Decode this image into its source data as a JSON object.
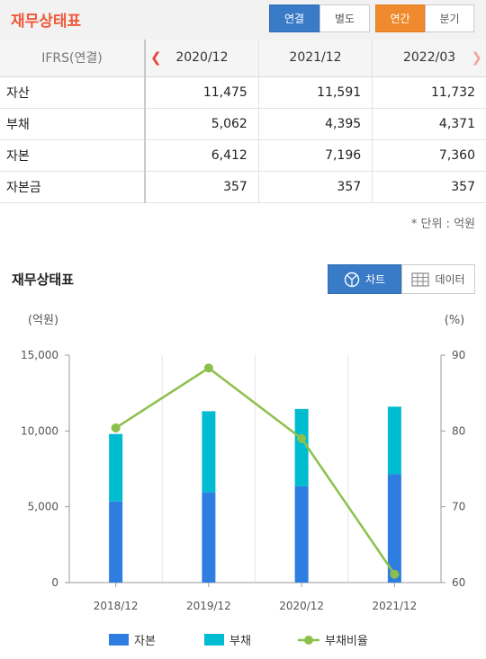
{
  "header": {
    "title": "재무상태표",
    "consolidation_tabs": [
      "연결",
      "별도"
    ],
    "period_tabs": [
      "연간",
      "분기"
    ],
    "colors": {
      "title": "#f0583a",
      "active_blue": "#3a7bc8",
      "active_orange": "#ef8a2e"
    }
  },
  "table": {
    "corner_label": "IFRS(연결)",
    "columns": [
      "2020/12",
      "2021/12",
      "2022/03"
    ],
    "rows": [
      {
        "label": "자산",
        "values": [
          "11,475",
          "11,591",
          "11,732"
        ]
      },
      {
        "label": "부채",
        "values": [
          "5,062",
          "4,395",
          "4,371"
        ]
      },
      {
        "label": "자본",
        "values": [
          "6,412",
          "7,196",
          "7,360"
        ]
      },
      {
        "label": "자본금",
        "values": [
          "357",
          "357",
          "357"
        ]
      }
    ],
    "unit_note": "* 단위 : 억원"
  },
  "chart_section": {
    "title": "재무상태표",
    "chart_button": "차트",
    "data_button": "데이터",
    "chart_icon": "pie-chart-icon",
    "data_icon": "table-grid-icon"
  },
  "chart_data": {
    "type": "bar",
    "stacked": true,
    "categories": [
      "2018/12",
      "2019/12",
      "2020/12",
      "2021/12"
    ],
    "y_left_label": "(억원)",
    "y_right_label": "(%)",
    "y_left_range": [
      0,
      15000
    ],
    "y_left_ticks": [
      "0",
      "5,000",
      "10,000",
      "15,000"
    ],
    "y_right_range": [
      60,
      90
    ],
    "y_right_ticks": [
      "60",
      "70",
      "80",
      "90"
    ],
    "grid": true,
    "legend_position": "bottom",
    "series": [
      {
        "name": "자본",
        "kind": "bar",
        "color": "#2e7de0",
        "values": [
          5350,
          5950,
          6350,
          7150
        ]
      },
      {
        "name": "부채",
        "kind": "bar",
        "color": "#00bcd0",
        "values": [
          4450,
          5350,
          5100,
          4450
        ]
      },
      {
        "name": "부채비율",
        "kind": "line",
        "axis": "right",
        "color": "#8cc04a",
        "values": [
          80.4,
          88.3,
          79.0,
          61.1
        ]
      }
    ]
  }
}
